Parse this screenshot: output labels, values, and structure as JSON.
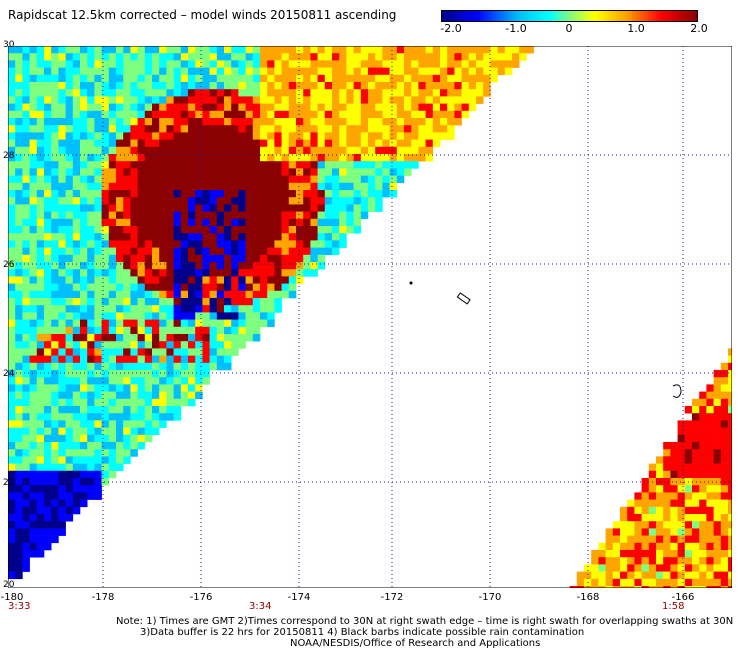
{
  "title": "Rapidscat 12.5km corrected – model winds 20150811 ascending",
  "colorbar": {
    "ticks": [
      {
        "label": "-2.0",
        "value": -2.0
      },
      {
        "label": "-1.0",
        "value": -1.0
      },
      {
        "label": "0",
        "value": 0
      },
      {
        "label": "1.0",
        "value": 1.0
      },
      {
        "label": "2.0",
        "value": 2.0
      }
    ]
  },
  "map": {
    "lon_range": [
      -180,
      -165
    ],
    "lat_range": [
      20,
      30
    ],
    "y_ticks": [
      "30",
      "28",
      "26",
      "24",
      "22",
      "20"
    ],
    "x_ticks": [
      "-180",
      "-178",
      "-176",
      "-174",
      "-172",
      "-170",
      "-168",
      "-166"
    ],
    "grid": true,
    "colors": {
      "dark_red": "#8b0000",
      "red": "#ff0000",
      "orange": "#ffa500",
      "yellow": "#ffff00",
      "green": "#7fff7f",
      "cyan": "#00ffff",
      "sky": "#00bfff",
      "blue": "#0000ff",
      "navy": "#00008b"
    }
  },
  "times": {
    "t1": "3:33",
    "t2": "3:34",
    "t3": "1:58"
  },
  "notes": {
    "line1": "Note: 1) Times are GMT 2)Times correspond to 30N at right swath edge – time is right swath for overlapping swaths at 30N",
    "line2": "3)Data buffer is 22 hrs for 20150811 4) Black barbs indicate possible rain contamination",
    "line3": "NOAA/NESDIS/Office of Research and Applications"
  }
}
